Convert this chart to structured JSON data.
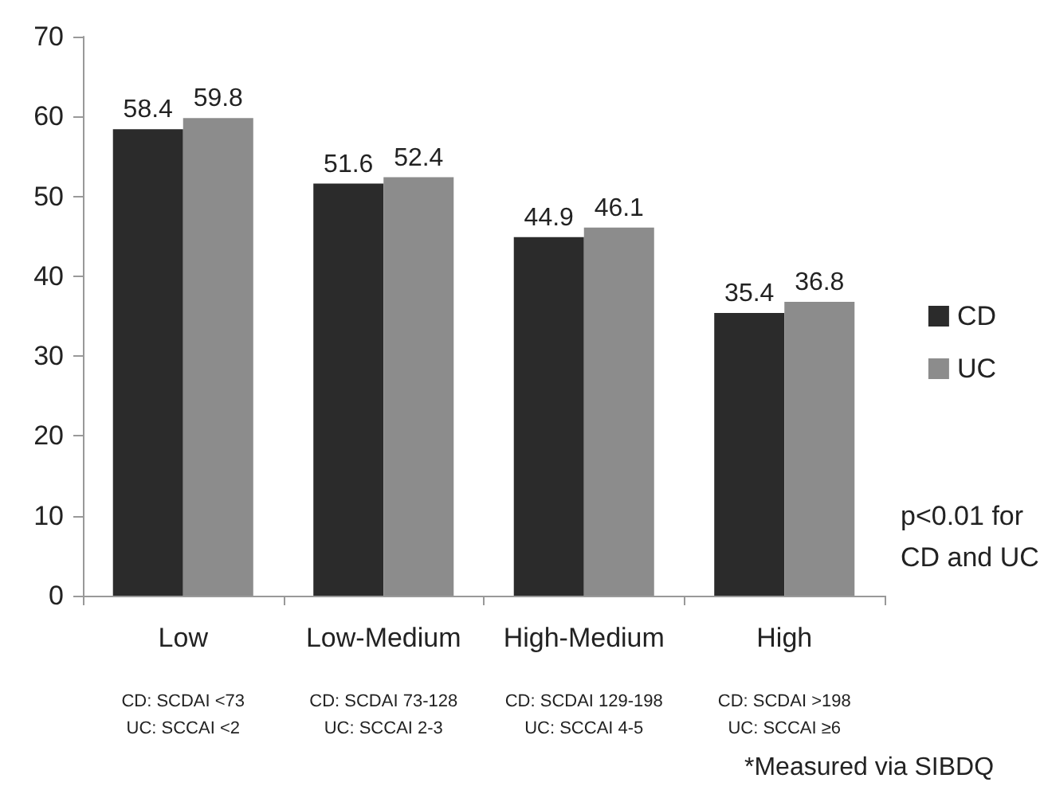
{
  "chart_data": {
    "type": "bar",
    "categories": [
      "Low",
      "Low-Medium",
      "High-Medium",
      "High"
    ],
    "series": [
      {
        "name": "CD",
        "color": "#2b2b2b",
        "values": [
          58.4,
          51.6,
          44.9,
          35.4
        ]
      },
      {
        "name": "UC",
        "color": "#8c8c8c",
        "values": [
          59.8,
          52.4,
          46.1,
          36.8
        ]
      }
    ],
    "ylim": [
      0,
      70
    ],
    "yticks": [
      0,
      10,
      20,
      30,
      40,
      50,
      60,
      70
    ],
    "grid": false,
    "legend": "right",
    "data_labels": true,
    "annotations": [
      "CD: SCDAI <73\nUC: SCCAI <2",
      "CD: SCDAI 73-128\nUC: SCCAI 2-3",
      "CD: SCDAI 129-198\nUC: SCCAI 4-5",
      "CD: SCDAI >198\nUC: SCCAI ≥6",
      "p<0.01 for\nCD and UC",
      "*Measured via SIBDQ"
    ]
  }
}
